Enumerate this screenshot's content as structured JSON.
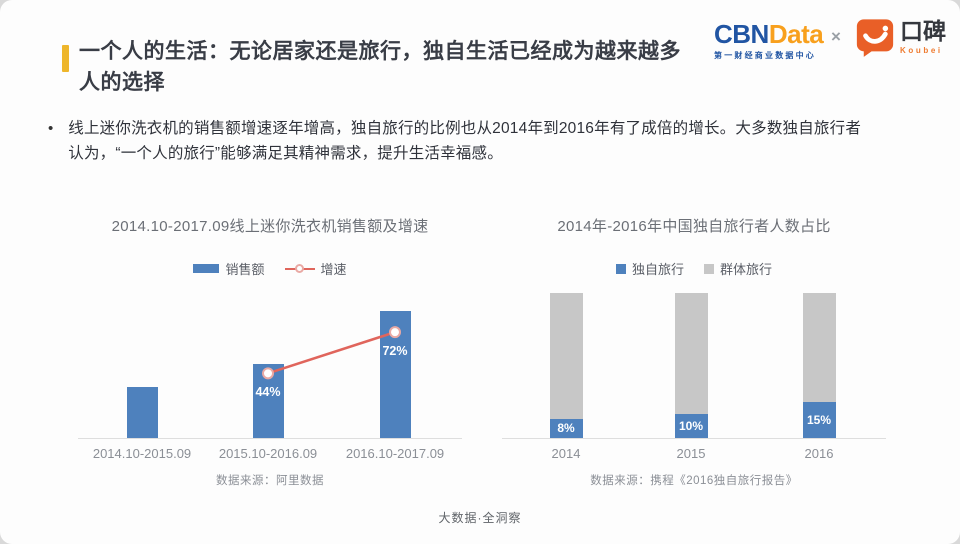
{
  "header": {
    "accent_color": "#eeb62b",
    "title_lines": [
      "一个人的生活：无论居家还是旅行，独自生活已经成为越来越多",
      "人的选择"
    ]
  },
  "logos": {
    "cbn": "CBN",
    "data": "Data",
    "cbn_color": "#2155a3",
    "data_color": "#f8a01d",
    "tagline": "第一财经商业数据中心",
    "tagline_color": "#2155a3",
    "separator": "×",
    "koubei_cn": "口碑",
    "koubei_en": "Koubei",
    "koubei_bubble_color": "#e95f27",
    "koubei_en_color": "#ef7b30"
  },
  "bullet": {
    "marker": "•",
    "lines": [
      "线上迷你洗衣机的销售额增速逐年增高，独自旅行的比例也从2014年到2016年有了成倍的增长。大多数独自旅行者",
      "认为，“一个人的旅行”能够满足其精神需求，提升生活幸福感。"
    ]
  },
  "chart_data": [
    {
      "type": "bar",
      "title": "2014.10-2017.09线上迷你洗衣机销售额及增速",
      "categories": [
        "2014.10-2015.09",
        "2015.10-2016.09",
        "2016.10-2017.09"
      ],
      "series": [
        {
          "name": "销售额",
          "render": "bar",
          "values": [
            100,
            144,
            248
          ],
          "color": "#4e81bd"
        },
        {
          "name": "增速",
          "render": "line",
          "values": [
            null,
            44,
            72
          ],
          "labels": [
            "",
            "44%",
            "72%"
          ],
          "color": "#e0655c",
          "marker_fill": "#ffffff",
          "marker_ring": "#e9a9a4"
        }
      ],
      "ylabel": "",
      "xlabel": "",
      "grid": false,
      "legend_position": "top",
      "source": "数据来源：阿里数据"
    },
    {
      "type": "bar",
      "subtype": "stacked-100",
      "title": "2014年-2016年中国独自旅行者人数占比",
      "categories": [
        "2014",
        "2015",
        "2016"
      ],
      "series": [
        {
          "name": "独自旅行",
          "values": [
            8,
            10,
            15
          ],
          "labels": [
            "8%",
            "10%",
            "15%"
          ],
          "color": "#4e81bd"
        },
        {
          "name": "群体旅行",
          "values": [
            92,
            90,
            85
          ],
          "color": "#c7c7c7"
        }
      ],
      "ylabel": "",
      "xlabel": "",
      "grid": false,
      "legend_position": "top",
      "source": "数据来源：携程《2016独自旅行报告》"
    }
  ],
  "footer": {
    "text": "大数据·全洞察"
  }
}
